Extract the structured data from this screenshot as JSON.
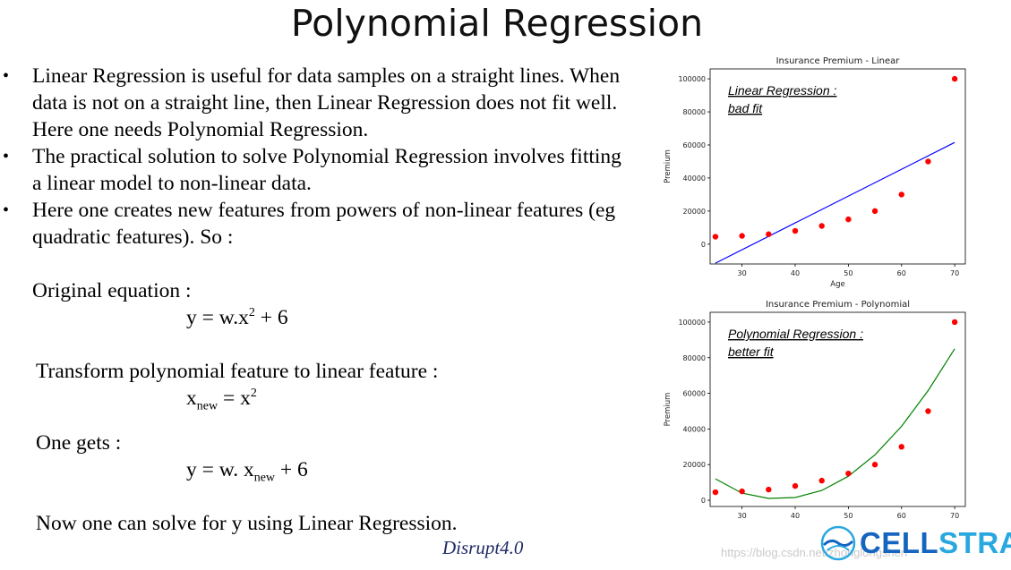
{
  "slide": {
    "title": "Polynomial Regression",
    "bullets": [
      "Linear Regression is useful for data samples on a straight lines. When data is not on a straight line, then Linear Regression does not fit well. Here one needs Polynomial Regression.",
      "The practical solution to solve Polynomial Regression involves fitting a linear model to non-linear data.",
      "Here one creates new features from powers of non-linear features (eg quadratic features). So :"
    ],
    "original_label": "Original equation :",
    "eq1": {
      "lhs": "y = w.x",
      "sup": "2",
      "rhs": " + 6"
    },
    "transform_label": "Transform polynomial feature to linear feature :",
    "eq2": {
      "var": "x",
      "sub": "new",
      "mid": " = x",
      "sup": "2"
    },
    "gets_label": "One gets :",
    "eq3": {
      "lhs": "y = w. x",
      "sub": "new",
      "rhs": " + 6"
    },
    "conclusion": "Now one can solve for y using Linear Regression.",
    "footer_tag": "Disrupt4.0",
    "watermark": "https://blog.csdn.net/zhonglongshen",
    "logo": {
      "part1": "CELL",
      "part2": "STRAT",
      "color1": "#1565c0",
      "color2": "#29a8e0"
    }
  },
  "chart_data": [
    {
      "type": "scatter+line",
      "title": "Insurance Premium - Linear",
      "xlabel": "Age",
      "ylabel": "Premium",
      "annotation": [
        "Linear Regression :",
        "bad fit"
      ],
      "xlim": [
        24,
        72
      ],
      "ylim": [
        -12000,
        106000
      ],
      "xticks": [
        "30",
        "40",
        "50",
        "60",
        "70"
      ],
      "xtick_values": [
        30,
        40,
        50,
        60,
        70
      ],
      "yticks": [
        "0",
        "20000",
        "40000",
        "60000",
        "80000",
        "100000"
      ],
      "ytick_values": [
        0,
        20000,
        40000,
        60000,
        80000,
        100000
      ],
      "points": {
        "x": [
          25,
          30,
          35,
          40,
          45,
          50,
          55,
          60,
          65,
          70
        ],
        "y": [
          4500,
          5000,
          6000,
          8000,
          11000,
          15000,
          20000,
          30000,
          50000,
          100000
        ]
      },
      "fit_line": {
        "x": [
          25,
          70
        ],
        "y": [
          -11500,
          61500
        ]
      },
      "colors": {
        "points": "#ff0000",
        "line": "#0000ff"
      }
    },
    {
      "type": "scatter+line",
      "title": "Insurance Premium - Polynomial",
      "xlabel": "",
      "ylabel": "Premium",
      "annotation": [
        "Polynomial Regression :",
        "better fit"
      ],
      "xlim": [
        24,
        72
      ],
      "ylim": [
        -3500,
        105500
      ],
      "xticks": [
        "30",
        "40",
        "50",
        "60",
        "70"
      ],
      "xtick_values": [
        30,
        40,
        50,
        60,
        70
      ],
      "yticks": [
        "0",
        "20000",
        "40000",
        "60000",
        "80000",
        "100000"
      ],
      "ytick_values": [
        0,
        20000,
        40000,
        60000,
        80000,
        100000
      ],
      "points": {
        "x": [
          25,
          30,
          35,
          40,
          45,
          50,
          55,
          60,
          65,
          70
        ],
        "y": [
          4500,
          5000,
          6000,
          8000,
          11000,
          15000,
          20000,
          30000,
          50000,
          100000
        ]
      },
      "fit_line": {
        "x": [
          25,
          30,
          35,
          40,
          45,
          50,
          55,
          60,
          65,
          70
        ],
        "y": [
          12000,
          4000,
          1000,
          1500,
          5500,
          13500,
          25500,
          41500,
          61500,
          85000
        ]
      },
      "colors": {
        "points": "#ff0000",
        "line": "#008000"
      }
    }
  ]
}
